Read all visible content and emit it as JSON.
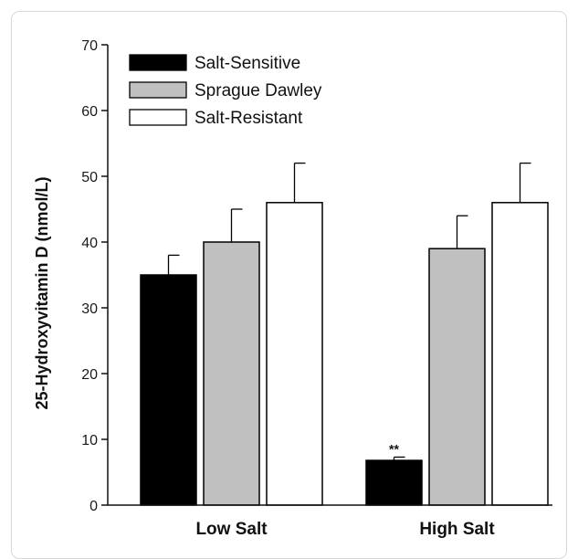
{
  "chart_data": {
    "type": "bar",
    "ylabel": "25-Hydroxyvitamin D (nmol/L)",
    "xlabel": "",
    "ylim": [
      0,
      70
    ],
    "yticks": [
      0,
      10,
      20,
      30,
      40,
      50,
      60,
      70
    ],
    "categories": [
      "Low Salt",
      "High Salt"
    ],
    "series": [
      {
        "name": "Salt-Sensitive",
        "color": "#000000",
        "values": [
          35,
          6.8
        ],
        "errors": [
          3,
          0.5
        ]
      },
      {
        "name": "Sprague Dawley",
        "color": "#c0c0c0",
        "values": [
          40,
          39
        ],
        "errors": [
          5,
          5
        ]
      },
      {
        "name": "Salt-Resistant",
        "color": "#ffffff",
        "values": [
          46,
          46
        ],
        "errors": [
          6,
          6
        ]
      }
    ],
    "annotations": [
      {
        "series": 0,
        "category": 1,
        "text": "**"
      }
    ],
    "legend_position": "top-left",
    "grid": false
  }
}
